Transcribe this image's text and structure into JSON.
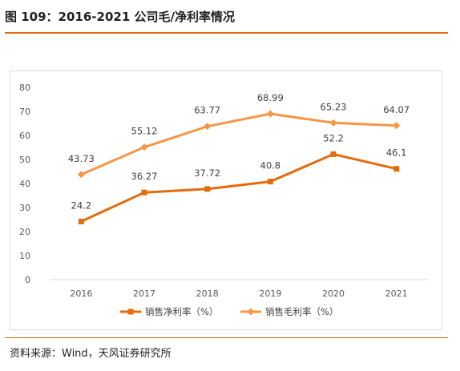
{
  "figure": {
    "title": "图 109：2016-2021 公司毛/净利率情况",
    "source": "资料来源：Wind，天风证券研究所"
  },
  "chart_data": {
    "type": "line",
    "title": "图 109：2016-2021 公司毛/净利率情况",
    "categories": [
      "2016",
      "2017",
      "2018",
      "2019",
      "2020",
      "2021"
    ],
    "series": [
      {
        "name": "销售净利率（%）",
        "values": [
          24.2,
          36.27,
          37.72,
          40.8,
          52.2,
          46.1
        ],
        "color": "#e46c0a",
        "marker": "square"
      },
      {
        "name": "销售毛利率（%）",
        "values": [
          43.73,
          55.12,
          63.77,
          68.99,
          65.23,
          64.07
        ],
        "color": "#f79646",
        "marker": "diamond"
      }
    ],
    "yticks": [
      0,
      10,
      20,
      30,
      40,
      50,
      60,
      70,
      80
    ],
    "ylim": [
      0,
      80
    ],
    "xlabel": "",
    "ylabel": "",
    "grid": false,
    "legend": "bottom"
  }
}
